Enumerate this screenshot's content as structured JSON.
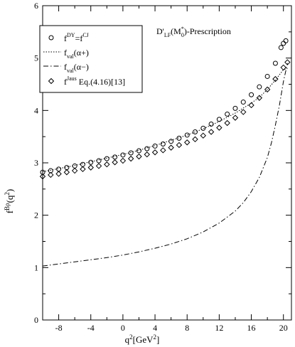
{
  "chart_data": {
    "type": "scatter",
    "title": "",
    "annotation": "D'LF(M*0)-Prescription",
    "xlabel": "q²[GeV²]",
    "ylabel": "f^Bρ(q²)",
    "xlim": [
      -10,
      21
    ],
    "ylim": [
      0,
      6
    ],
    "xticks": [
      -8,
      -4,
      0,
      4,
      8,
      12,
      16,
      20
    ],
    "yticks": [
      0,
      1,
      2,
      3,
      4,
      5,
      6
    ],
    "grid": false,
    "legend_position": "top-left",
    "series": [
      {
        "name": "f^DY=f^CJ",
        "style": "open-circle",
        "x": [
          -10,
          -9,
          -8,
          -7,
          -6,
          -5,
          -4,
          -3,
          -2,
          -1,
          0,
          1,
          2,
          3,
          4,
          5,
          6,
          7,
          8,
          9,
          10,
          11,
          12,
          13,
          14,
          15,
          16,
          17,
          18,
          19,
          19.7,
          20,
          20.3
        ],
        "y": [
          2.82,
          2.85,
          2.88,
          2.91,
          2.94,
          2.97,
          3.01,
          3.04,
          3.08,
          3.11,
          3.15,
          3.19,
          3.23,
          3.27,
          3.32,
          3.36,
          3.41,
          3.47,
          3.53,
          3.59,
          3.66,
          3.74,
          3.83,
          3.93,
          4.04,
          4.16,
          4.3,
          4.45,
          4.65,
          4.9,
          5.2,
          5.28,
          5.33
        ]
      },
      {
        "name": "f_val(α₊)",
        "style": "dotted",
        "x": [
          -10,
          -8,
          -6,
          -4,
          -2,
          0,
          2,
          4,
          6,
          8,
          10,
          12,
          14,
          16,
          17,
          18,
          19,
          19.5,
          20,
          20.5
        ],
        "y": [
          2.83,
          2.89,
          2.95,
          3.02,
          3.09,
          3.16,
          3.24,
          3.33,
          3.43,
          3.53,
          3.65,
          3.79,
          3.95,
          4.14,
          4.25,
          4.4,
          4.58,
          4.68,
          4.78,
          4.8
        ]
      },
      {
        "name": "f_val(α₋)",
        "style": "dash-dot",
        "x": [
          -10,
          -8,
          -6,
          -4,
          -2,
          0,
          2,
          4,
          6,
          8,
          10,
          12,
          14,
          15,
          16,
          17,
          18,
          18.5,
          19,
          19.5,
          20,
          20.5
        ],
        "y": [
          1.03,
          1.07,
          1.11,
          1.15,
          1.19,
          1.24,
          1.3,
          1.37,
          1.45,
          1.55,
          1.68,
          1.85,
          2.08,
          2.24,
          2.45,
          2.72,
          3.1,
          3.38,
          3.72,
          4.1,
          4.55,
          4.9
        ]
      },
      {
        "name": "f^Jaus Eq.(4.16)[13]",
        "style": "open-diamond",
        "x": [
          -10,
          -9,
          -8,
          -7,
          -6,
          -5,
          -4,
          -3,
          -2,
          -1,
          0,
          1,
          2,
          3,
          4,
          5,
          6,
          7,
          8,
          9,
          10,
          11,
          12,
          13,
          14,
          15,
          16,
          17,
          18,
          19,
          20,
          20.5
        ],
        "y": [
          2.74,
          2.77,
          2.79,
          2.82,
          2.85,
          2.88,
          2.91,
          2.94,
          2.97,
          3.01,
          3.04,
          3.08,
          3.12,
          3.16,
          3.2,
          3.24,
          3.29,
          3.34,
          3.39,
          3.45,
          3.52,
          3.59,
          3.67,
          3.76,
          3.86,
          3.97,
          4.1,
          4.24,
          4.4,
          4.6,
          4.82,
          4.92
        ]
      }
    ],
    "legend_entries": [
      {
        "base": "f",
        "sup": "DY",
        "mid": "=f",
        "sup2": "CJ",
        "sub": "",
        "tail": ""
      },
      {
        "base": "f",
        "sup": "",
        "mid": "",
        "sup2": "",
        "sub": "val",
        "tail": "(α+)"
      },
      {
        "base": "f",
        "sup": "",
        "mid": "",
        "sup2": "",
        "sub": "val",
        "tail": "(α−)"
      },
      {
        "base": "f",
        "sup": "Jaus",
        "mid": "",
        "sup2": "",
        "sub": "",
        "tail": " Eq.(4.16)[13]"
      }
    ],
    "annotation_parts": {
      "a": "D'",
      "sub": "LF",
      "b": "(M",
      "sup": "*",
      "sub2": "0",
      "c": ")-Prescription"
    },
    "xlabel_parts": {
      "base": "q",
      "sup": "2",
      "rest": "[GeV",
      "sup2": "2",
      "end": "]"
    },
    "ylabel_parts": {
      "base": "f",
      "sup": "Bρ",
      "rest": "(q",
      "sup2": "2",
      "end": ")"
    }
  }
}
